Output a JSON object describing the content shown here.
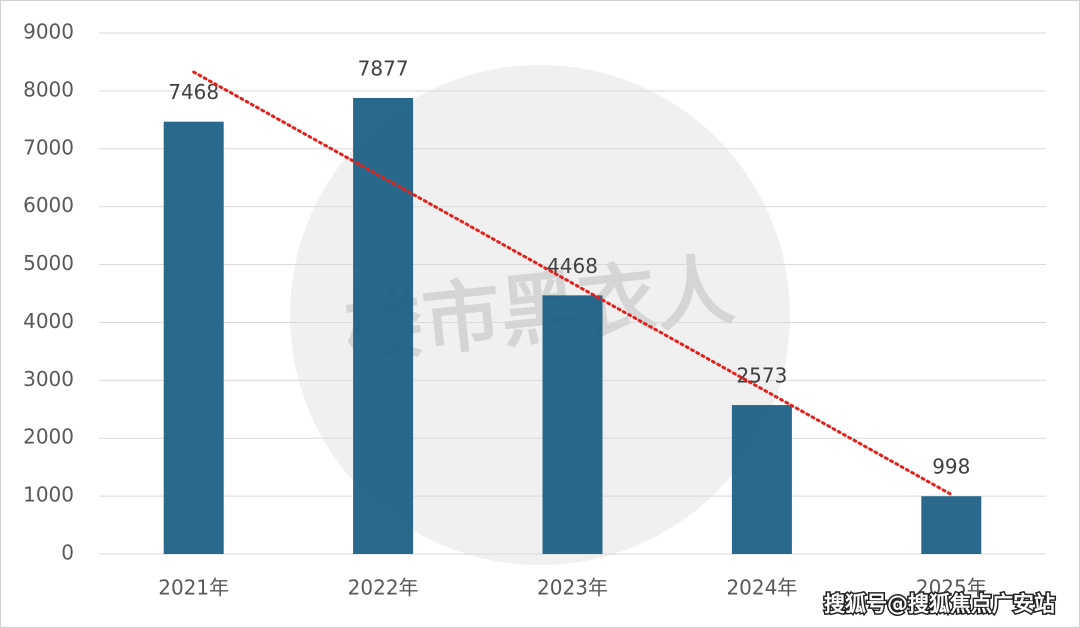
{
  "chart_data": {
    "type": "bar",
    "categories": [
      "2021年",
      "2022年",
      "2023年",
      "2024年",
      "2025年"
    ],
    "values": [
      7468,
      7877,
      4468,
      2573,
      998
    ],
    "color": "#195f83",
    "ylim": [
      0,
      9000
    ],
    "yticks": [
      0,
      1000,
      2000,
      3000,
      4000,
      5000,
      6000,
      7000,
      8000,
      9000
    ],
    "grid": true,
    "trendline": true,
    "trendline_color": "#e3211c",
    "watermark": "楼市黑衣人",
    "source": "搜狐号@搜狐焦点广安站"
  }
}
